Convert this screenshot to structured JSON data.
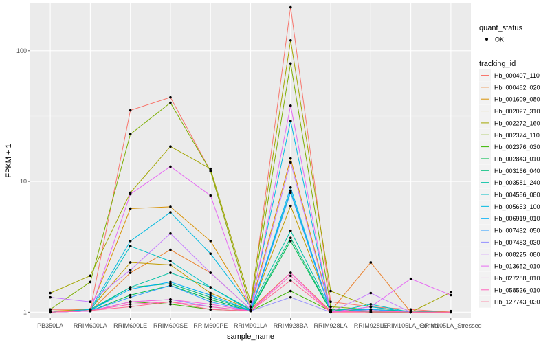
{
  "chart_data": {
    "type": "line",
    "xlabel": "sample_name",
    "ylabel": "FPKM + 1",
    "y_scale": "log10",
    "ylim": [
      0.9,
      230
    ],
    "y_ticks": [
      1,
      10,
      100
    ],
    "y_tick_labels": [
      "1",
      "10",
      "100"
    ],
    "grid": true,
    "legend_position": "right",
    "categories": [
      "PB350LA",
      "RRIM600LA",
      "RRIM600LE",
      "RRIM600SE",
      "RRIM600PE",
      "RRIM901LA",
      "RRIM928BA",
      "RRIM928LA",
      "RRIM928LE",
      "RRIM105LA_Control",
      "RRIM105LA_Stressed"
    ],
    "shape_legend": {
      "title": "quant_status",
      "items": [
        {
          "label": "OK"
        }
      ]
    },
    "color_legend_title": "tracking_id",
    "series": [
      {
        "name": "Hb_000407_110",
        "color": "#F8766D",
        "values": [
          1.05,
          1.05,
          35,
          44,
          12,
          1.1,
          215,
          1.2,
          1.1,
          1.05,
          1.0
        ]
      },
      {
        "name": "Hb_000462_020",
        "color": "#EA8331",
        "values": [
          1.0,
          1.02,
          2.0,
          3.0,
          2.0,
          1.05,
          2.0,
          1.02,
          2.4,
          1.0,
          1.0
        ]
      },
      {
        "name": "Hb_001609_080",
        "color": "#D89000",
        "values": [
          1.02,
          1.05,
          6.2,
          6.4,
          3.5,
          1.1,
          15,
          1.02,
          1.0,
          1.0,
          1.02
        ]
      },
      {
        "name": "Hb_002027_310",
        "color": "#C09B00",
        "values": [
          1.0,
          1.05,
          2.4,
          2.3,
          1.4,
          1.05,
          6.5,
          1.05,
          1.02,
          1.0,
          1.0
        ]
      },
      {
        "name": "Hb_002272_160",
        "color": "#A3A500",
        "values": [
          1.4,
          1.9,
          8.2,
          18.5,
          12.5,
          1.2,
          120,
          1.45,
          1.1,
          1.0,
          1.42
        ]
      },
      {
        "name": "Hb_002374_110",
        "color": "#7CAE00",
        "values": [
          1.05,
          1.7,
          23,
          40,
          12,
          1.1,
          80,
          1.1,
          1.05,
          1.0,
          1.0
        ]
      },
      {
        "name": "Hb_002376_030",
        "color": "#39B600",
        "values": [
          1.0,
          1.02,
          1.2,
          1.15,
          1.05,
          1.02,
          1.45,
          1.02,
          1.0,
          1.0,
          1.0
        ]
      },
      {
        "name": "Hb_002843_010",
        "color": "#00BB4E",
        "values": [
          1.0,
          1.02,
          1.35,
          1.6,
          1.25,
          1.02,
          3.5,
          1.02,
          1.0,
          1.0,
          1.0
        ]
      },
      {
        "name": "Hb_003166_040",
        "color": "#00BF7D",
        "values": [
          1.0,
          1.03,
          1.55,
          1.65,
          1.3,
          1.03,
          3.7,
          1.03,
          1.05,
          1.02,
          1.0
        ]
      },
      {
        "name": "Hb_003581_240",
        "color": "#00C1A3",
        "values": [
          1.0,
          1.05,
          1.55,
          2.0,
          1.55,
          1.05,
          4.2,
          1.05,
          1.05,
          1.0,
          1.0
        ]
      },
      {
        "name": "Hb_004586_080",
        "color": "#00BFC4",
        "values": [
          1.0,
          1.02,
          3.2,
          2.45,
          1.55,
          1.03,
          8.5,
          1.0,
          1.15,
          1.0,
          1.0
        ]
      },
      {
        "name": "Hb_005653_100",
        "color": "#00BAE0",
        "values": [
          1.0,
          1.05,
          3.5,
          5.8,
          2.8,
          1.1,
          29,
          1.0,
          1.1,
          1.0,
          1.0
        ]
      },
      {
        "name": "Hb_006919_010",
        "color": "#00B0F6",
        "values": [
          1.0,
          1.03,
          1.5,
          1.7,
          1.35,
          1.03,
          9.0,
          1.0,
          1.05,
          1.0,
          1.0
        ]
      },
      {
        "name": "Hb_007432_050",
        "color": "#35A2FF",
        "values": [
          1.0,
          1.02,
          1.3,
          1.6,
          1.2,
          1.02,
          8.2,
          1.0,
          1.05,
          1.0,
          1.0
        ]
      },
      {
        "name": "Hb_007483_030",
        "color": "#9590FF",
        "values": [
          1.0,
          1.02,
          1.2,
          1.25,
          1.1,
          1.02,
          1.3,
          1.0,
          1.02,
          1.0,
          1.0
        ]
      },
      {
        "name": "Hb_008225_080",
        "color": "#C77CFF",
        "values": [
          1.3,
          1.2,
          2.1,
          4.0,
          2.0,
          1.05,
          14,
          1.0,
          1.4,
          1.0,
          1.0
        ]
      },
      {
        "name": "Hb_013652_010",
        "color": "#E76BF3",
        "values": [
          1.0,
          1.02,
          8.0,
          13,
          7.8,
          1.05,
          38,
          1.0,
          1.1,
          1.8,
          1.35
        ]
      },
      {
        "name": "Hb_027288_010",
        "color": "#FA62DB",
        "values": [
          1.0,
          1.02,
          1.2,
          1.25,
          1.15,
          1.02,
          2.0,
          1.0,
          1.03,
          1.0,
          1.0
        ]
      },
      {
        "name": "Hb_058526_010",
        "color": "#FF62BC",
        "values": [
          1.0,
          1.03,
          1.15,
          1.2,
          1.1,
          1.02,
          1.9,
          1.0,
          1.02,
          1.0,
          1.0
        ]
      },
      {
        "name": "Hb_127743_030",
        "color": "#FF6C91",
        "values": [
          1.0,
          1.03,
          1.1,
          1.2,
          1.05,
          1.02,
          1.75,
          1.0,
          1.0,
          1.0,
          1.0
        ]
      }
    ]
  }
}
